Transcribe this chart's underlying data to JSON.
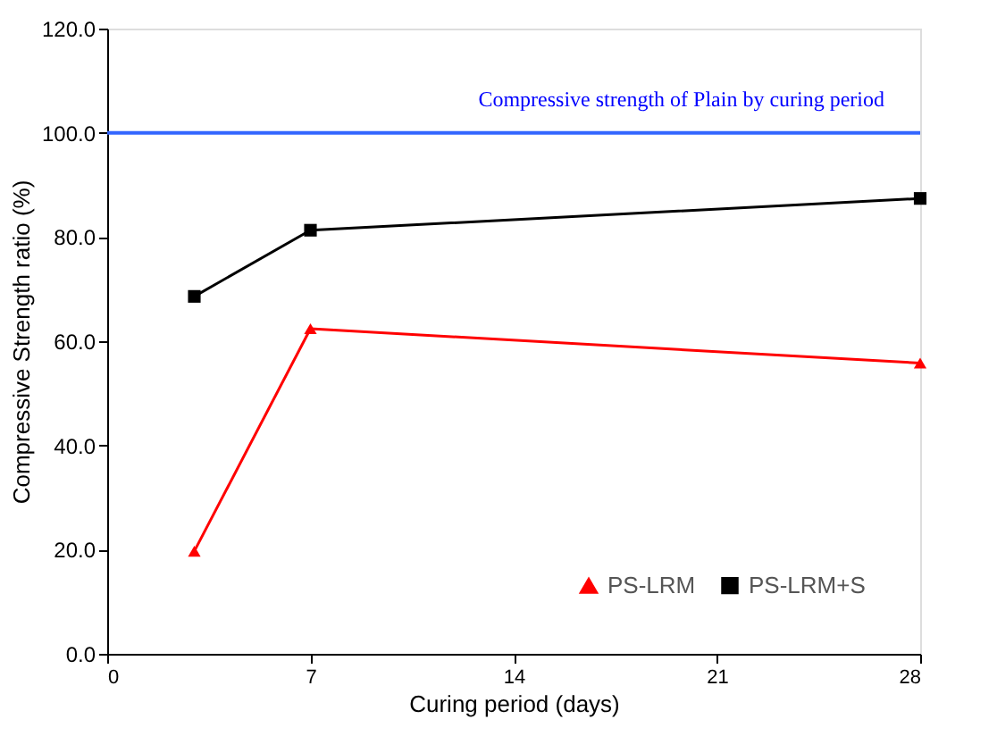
{
  "chart_data": {
    "type": "line",
    "xlabel": "Curing period (days)",
    "ylabel": "Compressive Strength ratio (%)",
    "x": [
      3,
      7,
      28
    ],
    "series": [
      {
        "name": "PS-LRM",
        "color": "#ff0000",
        "marker": "triangle",
        "values": [
          19.7,
          62.4,
          55.8
        ]
      },
      {
        "name": "PS-LRM+S",
        "color": "#000000",
        "marker": "square",
        "values": [
          68.6,
          81.3,
          87.4
        ]
      }
    ],
    "xlim": [
      0,
      28
    ],
    "xticks": [
      0,
      7,
      14,
      21,
      28
    ],
    "ylim": [
      0,
      120
    ],
    "yticks": [
      {
        "value": 0,
        "label": "0.0"
      },
      {
        "value": 20,
        "label": "20.0"
      },
      {
        "value": 40,
        "label": "40.0"
      },
      {
        "value": 60,
        "label": "60.0"
      },
      {
        "value": 80,
        "label": "80.0"
      },
      {
        "value": 100,
        "label": "100.0"
      },
      {
        "value": 120,
        "label": "120.0"
      }
    ],
    "ref_lines": [
      {
        "axis": "y",
        "value": 100,
        "label": "Compressive strength of Plain by curing period",
        "color": "#3366ff"
      }
    ],
    "grid": false,
    "legend": "bottom right",
    "line_style": "solid"
  }
}
